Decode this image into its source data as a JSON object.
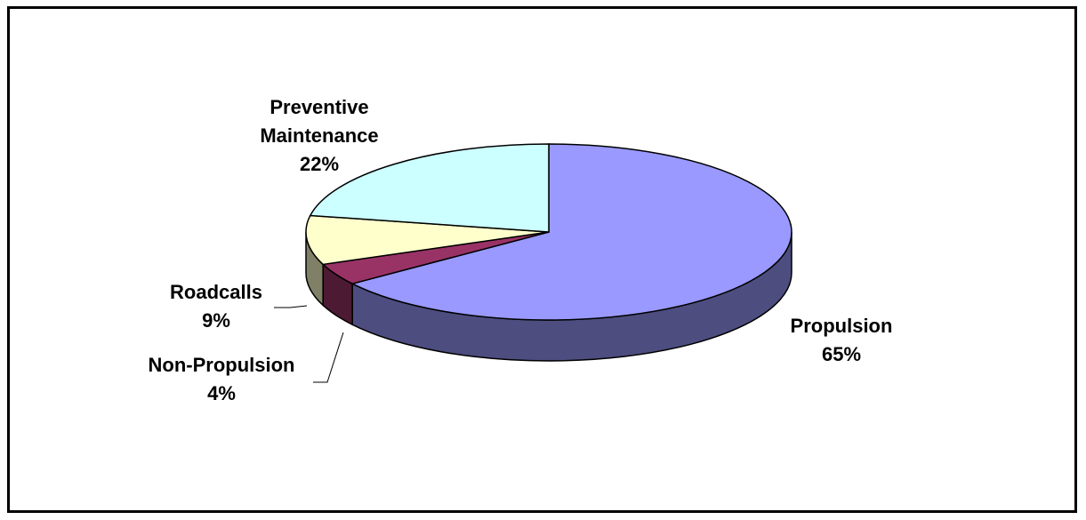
{
  "chart_data": {
    "type": "pie",
    "title": "",
    "slices": [
      {
        "label": "Propulsion",
        "value": 65,
        "value_label": "65%",
        "color": "#9999ff"
      },
      {
        "label": "Non-Propulsion",
        "value": 4,
        "value_label": "4%",
        "color": "#993366"
      },
      {
        "label": "Roadcalls",
        "value": 9,
        "value_label": "9%",
        "color": "#ffffcc"
      },
      {
        "label": "Preventive Maintenance",
        "value": 22,
        "value_label": "22%",
        "color": "#ccffff"
      }
    ],
    "legend": "none"
  }
}
